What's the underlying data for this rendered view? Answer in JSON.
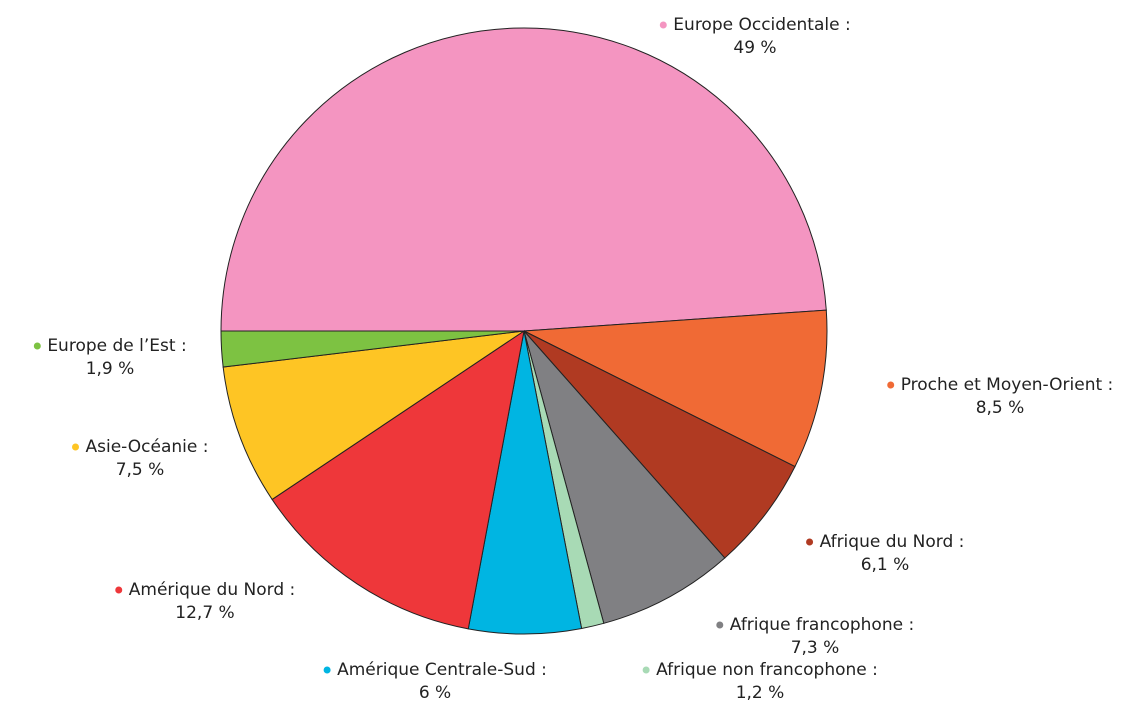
{
  "chart_data": {
    "type": "pie",
    "categories": [
      "Europe Occidentale :",
      "Proche et Moyen-Orient :",
      "Afrique du Nord :",
      "Afrique francophone :",
      "Afrique non francophone :",
      "Amérique Centrale-Sud :",
      "Amérique du Nord :",
      "Asie-Océanie :",
      "Europe de l’Est :"
    ],
    "values": [
      49,
      8.5,
      6.1,
      7.3,
      1.2,
      6,
      12.7,
      7.5,
      1.9
    ],
    "value_labels": [
      "49 %",
      "8,5 %",
      "6,1 %",
      "7,3 %",
      "1,2 %",
      "6 %",
      "12,7 %",
      "7,5 %",
      "1,9 %"
    ],
    "colors": [
      "#f495c1",
      "#f06a35",
      "#b03a22",
      "#808083",
      "#a8dab5",
      "#00b5e2",
      "#ee373a",
      "#fec524",
      "#7dc242"
    ]
  }
}
